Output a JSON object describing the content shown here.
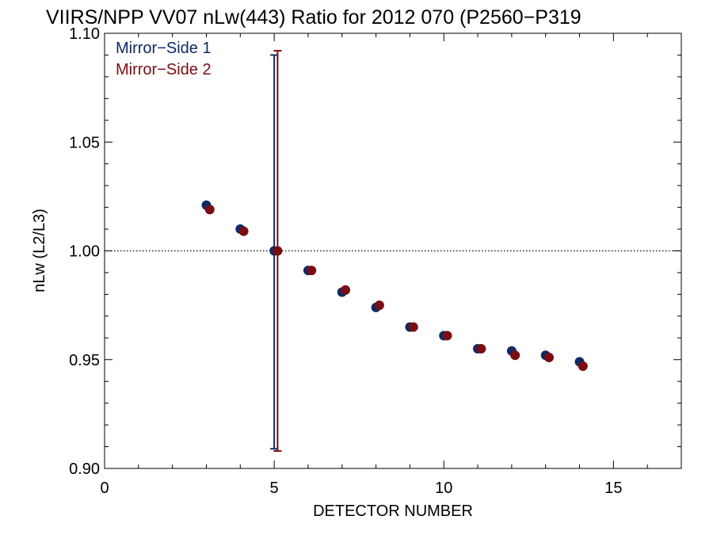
{
  "chart_data": {
    "type": "scatter",
    "title": "VIIRS/NPP VV07 nLw(443) Ratio for 2012 070 (P2560−P319",
    "xlabel": "DETECTOR NUMBER",
    "ylabel": "nLw (L2/L3)",
    "xlim": [
      0,
      17
    ],
    "ylim": [
      0.9,
      1.1
    ],
    "xticks": [
      0,
      5,
      10,
      15
    ],
    "xtick_labels": [
      "0",
      "5",
      "10",
      "15"
    ],
    "yticks": [
      0.9,
      0.95,
      1.0,
      1.05,
      1.1
    ],
    "ytick_labels": [
      "0.90",
      "0.95",
      "1.00",
      "1.05",
      "1.10"
    ],
    "reference_line": 1.0,
    "legend": "top-left",
    "series": [
      {
        "name": "Mirror−Side 1",
        "color": "#0e2a66",
        "x": [
          3,
          4,
          5,
          6,
          7,
          8,
          9,
          10,
          11,
          12,
          13,
          14
        ],
        "y": [
          1.021,
          1.01,
          1.0,
          0.991,
          0.981,
          0.974,
          0.965,
          0.961,
          0.955,
          0.954,
          0.952,
          0.949
        ],
        "error_bar": {
          "x": 5,
          "low": 0.909,
          "high": 1.09
        }
      },
      {
        "name": "Mirror−Side 2",
        "color": "#7a0d12",
        "x": [
          3.1,
          4.1,
          5.1,
          6.1,
          7.1,
          8.1,
          9.1,
          10.1,
          11.1,
          12.1,
          13.1,
          14.1
        ],
        "y": [
          1.019,
          1.009,
          1.0,
          0.991,
          0.982,
          0.975,
          0.965,
          0.961,
          0.955,
          0.952,
          0.951,
          0.947
        ],
        "error_bar": {
          "x": 5.1,
          "low": 0.908,
          "high": 1.092
        }
      }
    ]
  }
}
